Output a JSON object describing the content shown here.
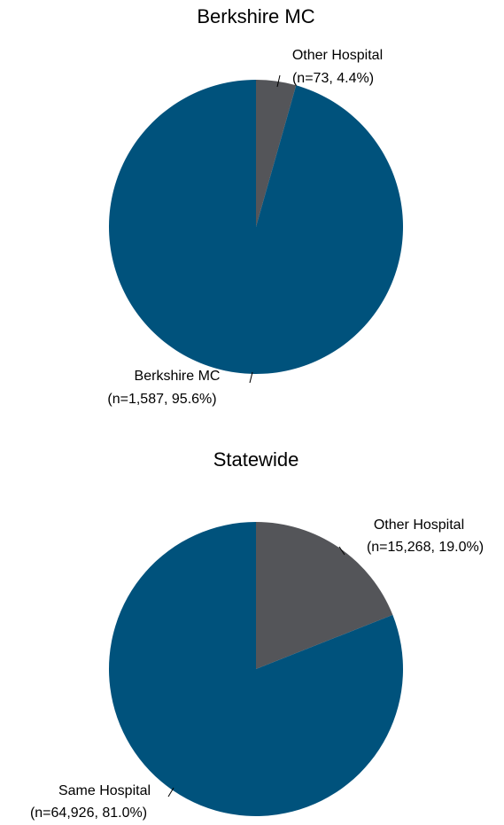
{
  "chart_data": [
    {
      "type": "pie",
      "title": "Berkshire MC",
      "categories": [
        "Other Hospital",
        "Berkshire MC"
      ],
      "values": [
        4.4,
        95.6
      ],
      "value_labels": [
        "(n=73, 4.4%)",
        "(n=1,587, 95.6%)"
      ],
      "colors": [
        "#545559",
        "#00527c"
      ]
    },
    {
      "type": "pie",
      "title": "Statewide",
      "categories": [
        "Other Hospital",
        "Same Hospital"
      ],
      "values": [
        19.0,
        81.0
      ],
      "value_labels": [
        "(n=15,268, 19.0%)",
        "(n=64,926, 81.0%)"
      ],
      "colors": [
        "#545559",
        "#00527c"
      ]
    }
  ]
}
